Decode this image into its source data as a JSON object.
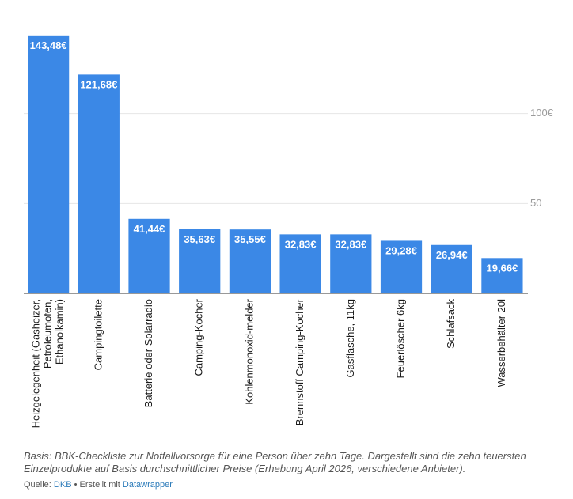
{
  "chart_data": {
    "type": "bar",
    "categories": [
      [
        "Heizgelegenheit (Gasheizer,",
        "Petroleumofen,",
        "Ethanolkamin)"
      ],
      [
        "Campingtoilette"
      ],
      [
        "Batterie oder Solarradio"
      ],
      [
        "Camping-Kocher"
      ],
      [
        "Kohlenmonoxid-melder"
      ],
      [
        "Brennstoff Camping-Kocher"
      ],
      [
        "Gasflasche, 11kg"
      ],
      [
        "Feuerlöscher 6kg"
      ],
      [
        "Schlafsack"
      ],
      [
        "Wasserbehälter 20l"
      ]
    ],
    "values": [
      143.48,
      121.68,
      41.44,
      35.63,
      35.55,
      32.83,
      32.83,
      29.28,
      26.94,
      19.66
    ],
    "value_labels": [
      "143,48€",
      "121,68€",
      "41,44€",
      "35,63€",
      "35,55€",
      "32,83€",
      "32,83€",
      "29,28€",
      "26,94€",
      "19,66€"
    ],
    "ylim": [
      0,
      150
    ],
    "yticks": [
      50,
      100
    ],
    "ytick_labels": [
      "50",
      "100€"
    ],
    "grid": true,
    "bar_color": "#3b88e6"
  },
  "footer": {
    "notes_line1": "Basis: BBK-Checkliste zur Notfallvorsorge für eine Person über zehn Tage. Dargestellt sind die zehn teuersten",
    "notes_line2": "Einzelprodukte auf Basis durchschnittlicher Preise (Erhebung April 2026, verschiedene Anbieter).",
    "source_prefix": "Quelle:",
    "source_name": "DKB",
    "created_text": "• Erstellt mit",
    "created_tool": "Datawrapper"
  }
}
